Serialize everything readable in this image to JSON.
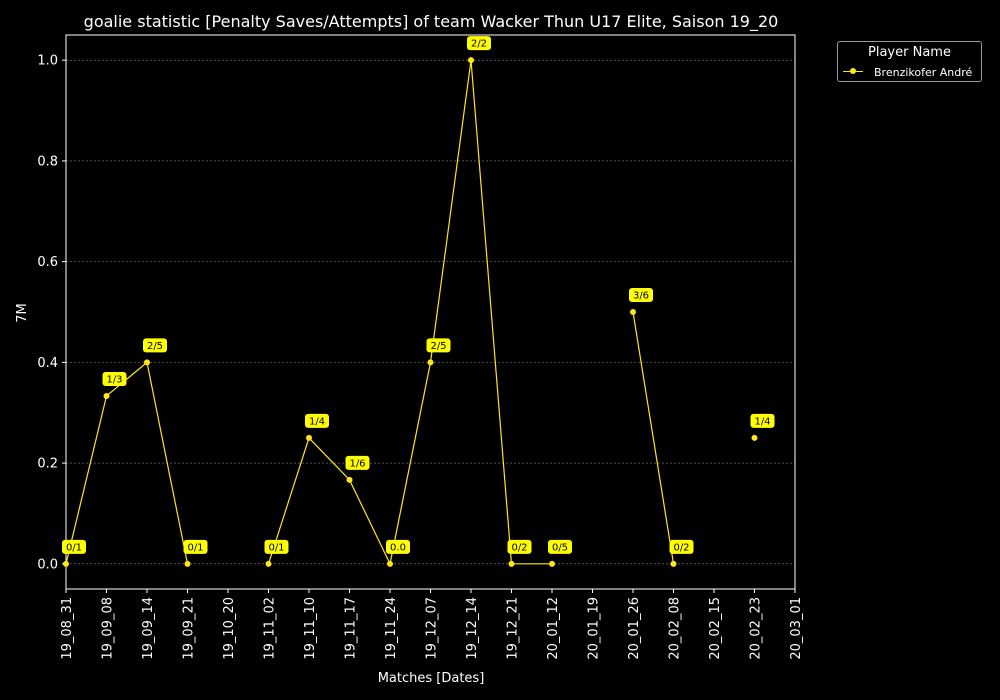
{
  "chart_data": {
    "type": "line",
    "title": "goalie statistic [Penalty Saves/Attempts] of team Wacker Thun U17 Elite, Saison 19_20",
    "xlabel": "Matches [Dates]",
    "ylabel": "7M",
    "ylim": [
      -0.05,
      1.05
    ],
    "yticks": [
      0.0,
      0.2,
      0.4,
      0.6,
      0.8,
      1.0
    ],
    "ytick_labels": [
      "0.0",
      "0.2",
      "0.4",
      "0.6",
      "0.8",
      "1.0"
    ],
    "xticks": [
      "19_08_31",
      "19_09_08",
      "19_09_14",
      "19_09_21",
      "19_10_20",
      "19_11_02",
      "19_11_10",
      "19_11_17",
      "19_11_24",
      "19_12_07",
      "19_12_14",
      "19_12_21",
      "20_01_12",
      "20_01_19",
      "20_01_26",
      "20_02_08",
      "20_02_15",
      "20_02_23",
      "20_03_01"
    ],
    "grid": "horizontal-dashed",
    "legend_position": "outside-top-right",
    "legend_title": "Player Name",
    "series": [
      {
        "name": "Brenzikofer André",
        "color": "#ffe61a",
        "values": [
          0.0,
          0.3333,
          0.4,
          0.0,
          null,
          0.0,
          0.25,
          0.1667,
          0.0,
          0.4,
          1.0,
          0.0,
          0.0,
          null,
          0.5,
          0.0,
          null,
          0.25,
          null
        ],
        "labels": [
          "0/1",
          "1/3",
          "2/5",
          "0/1",
          null,
          "0/1",
          "1/4",
          "1/6",
          "0.0",
          "2/5",
          "2/2",
          "0/2",
          "0/5",
          null,
          "3/6",
          "0/2",
          null,
          "1/4",
          null
        ]
      }
    ]
  }
}
